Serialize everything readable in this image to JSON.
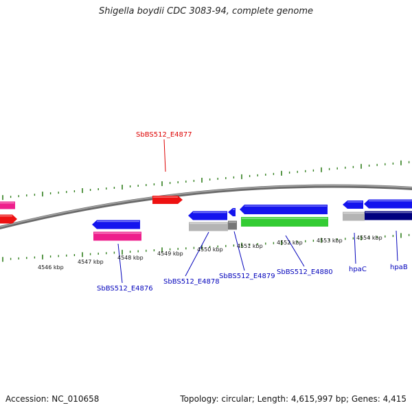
{
  "title": "Shigella boydii CDC 3083-94, complete genome",
  "accession": "Accession: NC_010658",
  "summary": "Topology: circular; Length: 4,615,997 bp; Genes: 4,415",
  "colors": {
    "backbone": "#7f7f7f",
    "tick": "#2e7d1a",
    "forward": "#1414ee",
    "reverse_pink": "#ee1e8c",
    "red": "#ee1111",
    "grey": "#b4b4b4",
    "green": "#33cc33",
    "navy": "#00007f",
    "label_blue": "#0000bb",
    "label_red": "#dd0000"
  },
  "kbp_labels": [
    "4546 kbp",
    "4547 kbp",
    "4548 kbp",
    "4549 kbp",
    "4550 kbp",
    "4551 kbp",
    "4552 kbp",
    "4553 kbp",
    "4554 kbp"
  ],
  "gene_labels": {
    "e4877": "SbBS512_E4877",
    "e4876": "SbBS512_E4876",
    "e4878": "SbBS512_E4878",
    "e4879": "SbBS512_E4879",
    "e4880": "SbBS512_E4880",
    "hpaC": "hpaC",
    "hpaB": "hpaB"
  }
}
